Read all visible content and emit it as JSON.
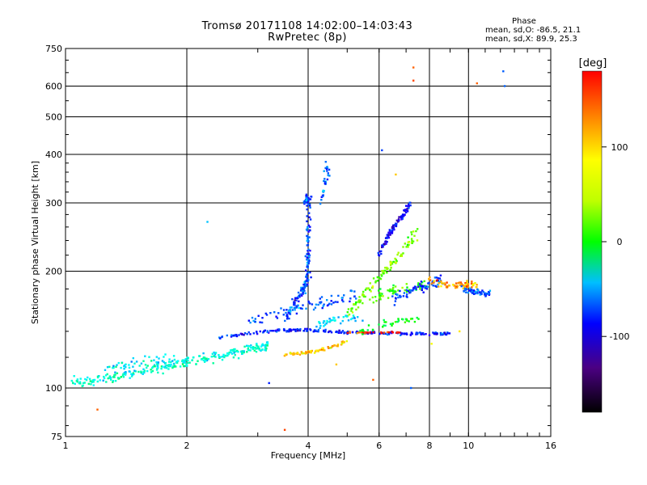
{
  "chart_data": {
    "type": "scatter",
    "title": "Tromsø 20171108 14:02:00–14:03:43",
    "subtitle": "RwPretec (8p)",
    "xlabel": "Frequency [MHz]",
    "ylabel": "Stationary phase Virtual Height [km]",
    "x_scale": "log",
    "y_scale": "log",
    "xlim": [
      1,
      16
    ],
    "ylim": [
      75,
      750
    ],
    "x_ticks": [
      "1",
      "2",
      "4",
      "6",
      "8",
      "10",
      "16"
    ],
    "y_ticks": [
      "75",
      "100",
      "200",
      "300",
      "400",
      "500",
      "600",
      "750"
    ],
    "grid": true,
    "colorbar": {
      "label": "[deg]",
      "range": [
        -180,
        180
      ],
      "ticks": [
        "100",
        "0",
        "-100"
      ],
      "colormap": "rainbow"
    },
    "stats": {
      "heading": "Phase",
      "o_line": "mean, sd,O: -86.5, 21.1",
      "x_line": "mean, sd,X: 89.9, 25.3"
    },
    "traces": [
      {
        "points": [
          [
            1.05,
            105
          ],
          [
            1.12,
            104
          ],
          [
            1.2,
            105
          ],
          [
            1.3,
            106
          ],
          [
            1.4,
            108
          ],
          [
            1.5,
            109
          ],
          [
            1.6,
            111
          ],
          [
            1.75,
            113
          ],
          [
            1.9,
            115
          ],
          [
            2.0,
            117
          ],
          [
            2.2,
            119
          ],
          [
            2.4,
            121
          ],
          [
            2.6,
            123
          ],
          [
            2.8,
            125
          ],
          [
            3.0,
            127
          ],
          [
            3.2,
            129
          ]
        ],
        "phase": -40,
        "spread": 0.035,
        "n": 280
      },
      {
        "points": [
          [
            1.2,
            111
          ],
          [
            1.35,
            114
          ],
          [
            1.5,
            116
          ],
          [
            1.7,
            118
          ],
          [
            1.9,
            119
          ]
        ],
        "phase": -50,
        "spread": 0.04,
        "n": 50
      },
      {
        "points": [
          [
            2.4,
            135
          ],
          [
            2.8,
            138
          ],
          [
            3.2,
            140
          ],
          [
            3.6,
            141
          ],
          [
            4.0,
            141
          ],
          [
            4.5,
            140
          ],
          [
            5.0,
            139
          ],
          [
            5.5,
            139
          ],
          [
            6.0,
            139
          ],
          [
            7.0,
            138
          ],
          [
            8.0,
            138
          ],
          [
            9.0,
            138
          ]
        ],
        "phase": -120,
        "spread": 0.01,
        "n": 230
      },
      {
        "points": [
          [
            5.0,
            139
          ],
          [
            5.6,
            139
          ],
          [
            6.2,
            139
          ],
          [
            6.8,
            139
          ]
        ],
        "phase": 170,
        "spread": 0.006,
        "n": 30
      },
      {
        "points": [
          [
            3.5,
            122
          ],
          [
            3.8,
            123
          ],
          [
            4.1,
            124
          ],
          [
            4.4,
            126
          ],
          [
            4.7,
            129
          ],
          [
            5.0,
            132
          ]
        ],
        "phase": 120,
        "spread": 0.01,
        "n": 70
      },
      {
        "points": [
          [
            3.5,
            150
          ],
          [
            3.7,
            165
          ],
          [
            3.9,
            180
          ],
          [
            4.0,
            195
          ],
          [
            4.0,
            215
          ],
          [
            4.0,
            250
          ],
          [
            4.0,
            300
          ],
          [
            3.95,
            305
          ],
          [
            4.05,
            310
          ]
        ],
        "phase": -110,
        "spread": 0.03,
        "n": 180
      },
      {
        "points": [
          [
            4.3,
            300
          ],
          [
            4.4,
            330
          ],
          [
            4.5,
            360
          ],
          [
            4.4,
            385
          ],
          [
            4.35,
            310
          ]
        ],
        "phase": -100,
        "spread": 0.015,
        "n": 30
      },
      {
        "points": [
          [
            2.9,
            148
          ],
          [
            3.3,
            155
          ],
          [
            3.8,
            160
          ],
          [
            4.3,
            165
          ],
          [
            4.8,
            170
          ],
          [
            5.3,
            175
          ]
        ],
        "phase": -100,
        "spread": 0.045,
        "n": 80
      },
      {
        "points": [
          [
            5.0,
            155
          ],
          [
            5.4,
            170
          ],
          [
            5.8,
            185
          ],
          [
            6.2,
            200
          ],
          [
            6.6,
            215
          ],
          [
            7.0,
            230
          ],
          [
            7.4,
            250
          ]
        ],
        "phase": 60,
        "spread": 0.04,
        "n": 110
      },
      {
        "points": [
          [
            6.0,
            220
          ],
          [
            6.3,
            245
          ],
          [
            6.6,
            265
          ],
          [
            6.9,
            280
          ],
          [
            7.2,
            300
          ]
        ],
        "phase": -130,
        "spread": 0.02,
        "n": 110
      },
      {
        "points": [
          [
            5.8,
            170
          ],
          [
            6.3,
            175
          ],
          [
            6.8,
            180
          ],
          [
            7.3,
            180
          ],
          [
            7.8,
            185
          ]
        ],
        "phase": 40,
        "spread": 0.04,
        "n": 60
      },
      {
        "points": [
          [
            6.5,
            170
          ],
          [
            7.0,
            175
          ],
          [
            7.5,
            180
          ],
          [
            8.0,
            185
          ],
          [
            8.6,
            190
          ]
        ],
        "phase": -110,
        "spread": 0.035,
        "n": 70
      },
      {
        "points": [
          [
            8.0,
            190
          ],
          [
            8.6,
            185
          ],
          [
            9.2,
            183
          ],
          [
            9.8,
            185
          ],
          [
            10.5,
            185
          ]
        ],
        "phase": 130,
        "spread": 0.025,
        "n": 70
      },
      {
        "points": [
          [
            9.5,
            180
          ],
          [
            10.0,
            178
          ],
          [
            10.5,
            176
          ],
          [
            11.0,
            175
          ],
          [
            11.3,
            175
          ]
        ],
        "phase": -100,
        "spread": 0.02,
        "n": 55
      },
      {
        "points": [
          [
            5.2,
            138
          ],
          [
            6.0,
            145
          ],
          [
            6.8,
            150
          ],
          [
            7.5,
            150
          ]
        ],
        "phase": 20,
        "spread": 0.03,
        "n": 40
      },
      {
        "points": [
          [
            4.2,
            145
          ],
          [
            4.6,
            150
          ],
          [
            5.0,
            152
          ],
          [
            5.4,
            150
          ]
        ],
        "phase": -60,
        "spread": 0.03,
        "n": 40
      }
    ],
    "isolated_points": [
      [
        1.2,
        88,
        150
      ],
      [
        2.25,
        268,
        -70
      ],
      [
        3.2,
        103,
        -120
      ],
      [
        3.5,
        78,
        160
      ],
      [
        6.1,
        410,
        -110
      ],
      [
        7.3,
        670,
        150
      ],
      [
        7.3,
        620,
        160
      ],
      [
        6.6,
        355,
        120
      ],
      [
        10.5,
        610,
        150
      ],
      [
        12.2,
        655,
        -100
      ],
      [
        12.3,
        600,
        -100
      ],
      [
        7.2,
        100,
        -100
      ],
      [
        4.7,
        115,
        120
      ],
      [
        5.8,
        105,
        150
      ],
      [
        9.5,
        140,
        110
      ],
      [
        8.1,
        130,
        100
      ]
    ]
  }
}
